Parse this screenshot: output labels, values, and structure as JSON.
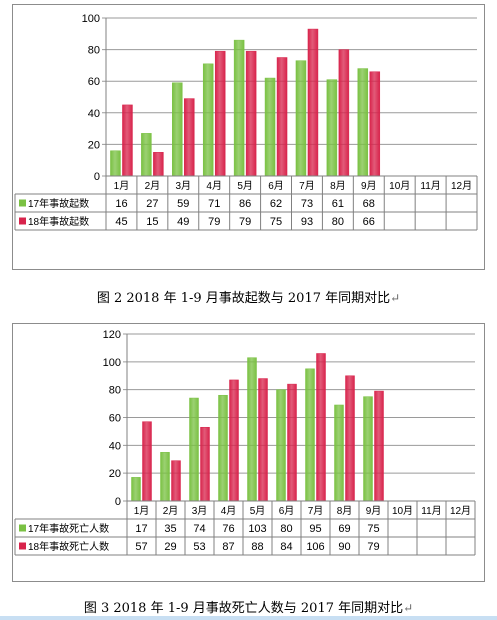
{
  "charts": [
    {
      "type": "bar",
      "categories": [
        "1月",
        "2月",
        "3月",
        "4月",
        "5月",
        "6月",
        "7月",
        "8月",
        "9月",
        "10月",
        "11月",
        "12月"
      ],
      "ylim": [
        0,
        100
      ],
      "yticks": [
        0,
        20,
        40,
        60,
        80,
        100
      ],
      "series": [
        {
          "name": "17年事故起数",
          "color": "#7ac143",
          "values": [
            16,
            27,
            59,
            71,
            86,
            62,
            73,
            61,
            68,
            null,
            null,
            null
          ]
        },
        {
          "name": "18年事故起数",
          "color": "#d8244c",
          "values": [
            45,
            15,
            49,
            79,
            79,
            75,
            93,
            80,
            66,
            null,
            null,
            null
          ]
        }
      ],
      "caption": "图 2  2018 年 1-9 月事故起数与 2017 年同期对比"
    },
    {
      "type": "bar",
      "categories": [
        "1月",
        "2月",
        "3月",
        "4月",
        "5月",
        "6月",
        "7月",
        "8月",
        "9月",
        "10月",
        "11月",
        "12月"
      ],
      "ylim": [
        0,
        120
      ],
      "yticks": [
        0,
        20,
        40,
        60,
        80,
        100,
        120
      ],
      "series": [
        {
          "name": "17年事故死亡人数",
          "color": "#7ac143",
          "values": [
            17,
            35,
            74,
            76,
            103,
            80,
            95,
            69,
            75,
            null,
            null,
            null
          ]
        },
        {
          "name": "18年事故死亡人数",
          "color": "#d8244c",
          "values": [
            57,
            29,
            53,
            87,
            88,
            84,
            106,
            90,
            79,
            null,
            null,
            null
          ]
        }
      ],
      "caption": "图 3  2018 年 1-9 月事故死亡人数与 2017 年同期对比"
    }
  ],
  "paragraph_mark": "↵"
}
